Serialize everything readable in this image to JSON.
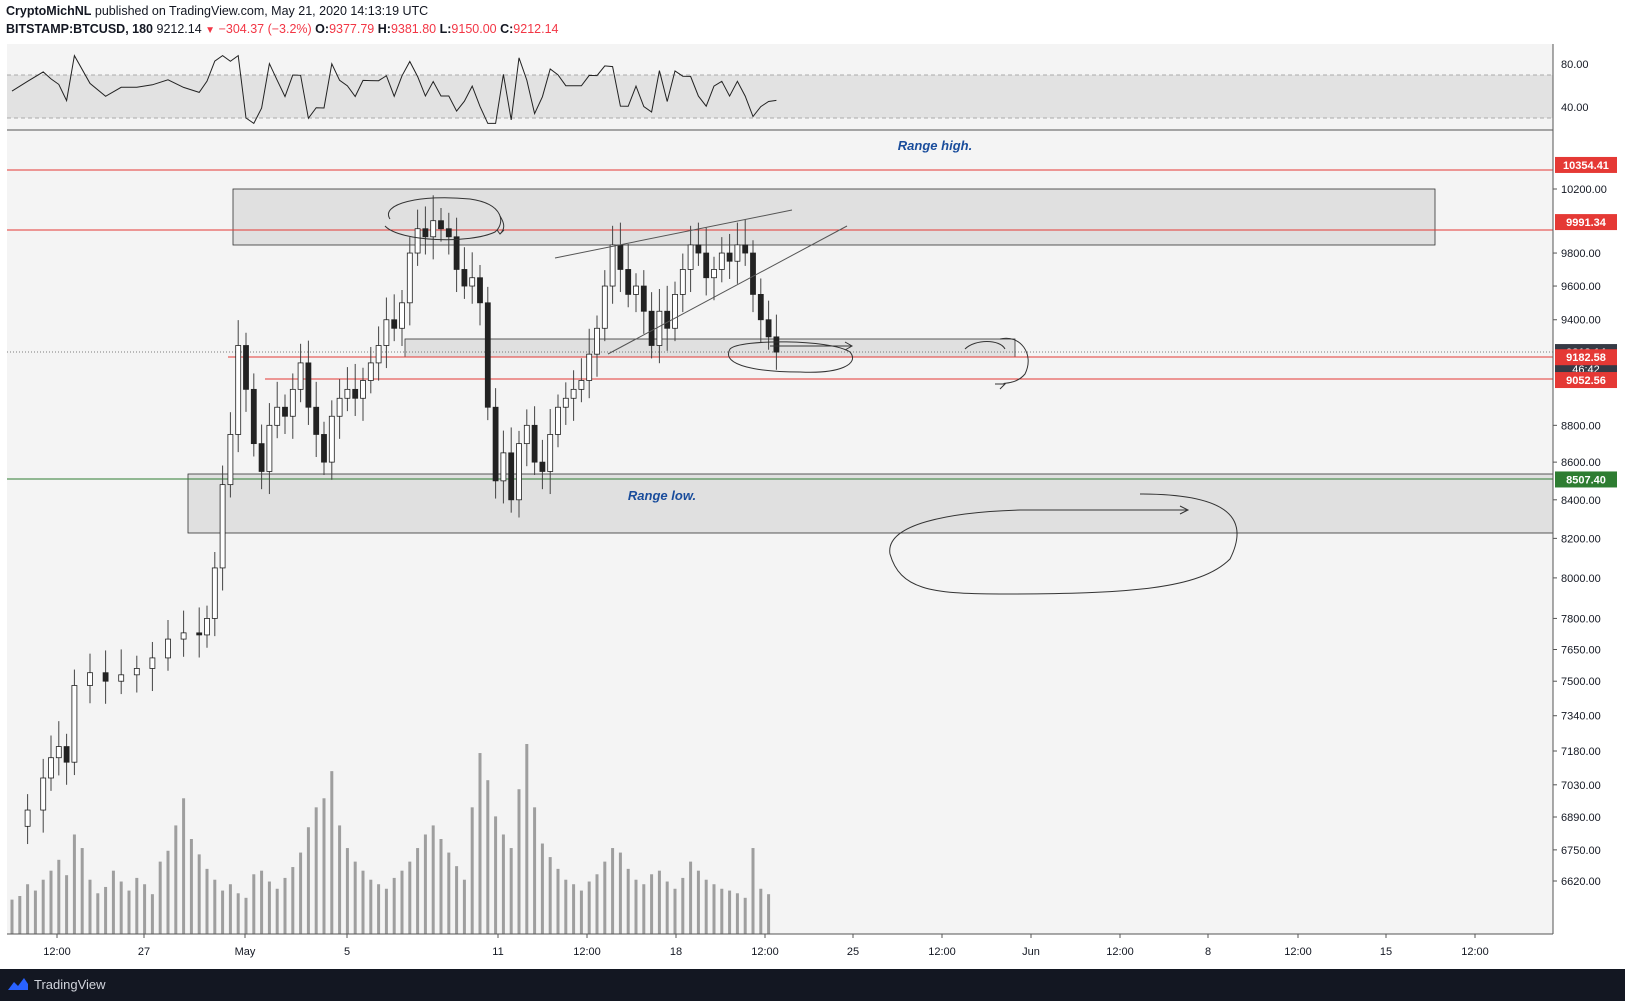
{
  "header": {
    "author": "CryptoMichNL",
    "published_text": "published on TradingView.com, May 21, 2020 14:13:19 UTC",
    "symbol": "BITSTAMP:BTCUSD, 180",
    "last_price": "9212.14",
    "change": "−304.37 (−3.2%)",
    "o_label": "O:",
    "o_value": "9377.79",
    "h_label": "H:",
    "h_value": "9381.80",
    "l_label": "L:",
    "l_value": "9150.00",
    "c_label": "C:",
    "c_value": "9212.14"
  },
  "footer": {
    "brand": "TradingView"
  },
  "chart_data": {
    "type": "candlestick",
    "symbol": "BITSTAMP:BTCUSD",
    "interval": "180",
    "ylim": [
      6450,
      10900
    ],
    "y_scale": "log",
    "y_ticks": [
      10200,
      9800,
      9600,
      9400,
      8800,
      8600,
      8400,
      8200,
      8000,
      7800,
      7650,
      7500,
      7340,
      7180,
      7030,
      6890,
      6750,
      6620
    ],
    "x_ticks": [
      "12:00",
      "27",
      "May",
      "5",
      "11",
      "12:00",
      "18",
      "12:00",
      "25",
      "12:00",
      "Jun",
      "12:00",
      "8",
      "12:00",
      "15",
      "12:00"
    ],
    "rsi": {
      "levels": [
        70,
        30
      ],
      "ticks": [
        "80.00",
        "40.00"
      ]
    },
    "price_levels": [
      {
        "value": 10354.41,
        "label": "10354.41",
        "color": "#e53935"
      },
      {
        "value": 9991.34,
        "label": "9991.34",
        "color": "#e53935"
      },
      {
        "value": 9212.14,
        "label": "9212.14",
        "color": "#363a45",
        "countdown": "46:42"
      },
      {
        "value": 9182.58,
        "label": "9182.58",
        "color": "#e53935"
      },
      {
        "value": 9052.56,
        "label": "9052.56",
        "color": "#e53935"
      },
      {
        "value": 8507.4,
        "label": "8507.40",
        "color": "#2e7d32"
      }
    ],
    "annotations": [
      {
        "text": "Range high."
      },
      {
        "text": "Range low."
      }
    ],
    "zones": [
      {
        "name": "range-high-zone",
        "top": 10260,
        "bottom": 9890
      },
      {
        "name": "mid-support-zone",
        "top": 9282,
        "bottom": 9180
      },
      {
        "name": "range-low-zone",
        "top": 8650,
        "bottom": 8290
      }
    ],
    "price_path": [
      [
        0,
        6850
      ],
      [
        2,
        6920
      ],
      [
        4,
        7060
      ],
      [
        5,
        7150
      ],
      [
        6,
        7200
      ],
      [
        7,
        7130
      ],
      [
        8,
        7480
      ],
      [
        10,
        7540
      ],
      [
        12,
        7500
      ],
      [
        14,
        7530
      ],
      [
        16,
        7560
      ],
      [
        18,
        7610
      ],
      [
        20,
        7700
      ],
      [
        22,
        7730
      ],
      [
        24,
        7720
      ],
      [
        25,
        7800
      ],
      [
        26,
        8050
      ],
      [
        27,
        8480
      ],
      [
        28,
        8750
      ],
      [
        29,
        9250
      ],
      [
        30,
        9000
      ],
      [
        31,
        8700
      ],
      [
        32,
        8550
      ],
      [
        33,
        8800
      ],
      [
        34,
        8900
      ],
      [
        35,
        8850
      ],
      [
        36,
        9000
      ],
      [
        37,
        9150
      ],
      [
        38,
        8900
      ],
      [
        39,
        8750
      ],
      [
        40,
        8600
      ],
      [
        41,
        8850
      ],
      [
        42,
        8950
      ],
      [
        43,
        9000
      ],
      [
        44,
        8950
      ],
      [
        45,
        9050
      ],
      [
        46,
        9150
      ],
      [
        47,
        9250
      ],
      [
        48,
        9400
      ],
      [
        49,
        9350
      ],
      [
        50,
        9500
      ],
      [
        51,
        9800
      ],
      [
        52,
        9950
      ],
      [
        53,
        9900
      ],
      [
        54,
        10000
      ],
      [
        55,
        9950
      ],
      [
        56,
        9900
      ],
      [
        57,
        9700
      ],
      [
        58,
        9600
      ],
      [
        59,
        9650
      ],
      [
        60,
        9500
      ],
      [
        61,
        8900
      ],
      [
        62,
        8500
      ],
      [
        63,
        8650
      ],
      [
        64,
        8400
      ],
      [
        65,
        8700
      ],
      [
        66,
        8800
      ],
      [
        67,
        8600
      ],
      [
        68,
        8550
      ],
      [
        69,
        8750
      ],
      [
        70,
        8900
      ],
      [
        71,
        8950
      ],
      [
        72,
        9000
      ],
      [
        73,
        9050
      ],
      [
        74,
        9200
      ],
      [
        75,
        9350
      ],
      [
        76,
        9600
      ],
      [
        77,
        9850
      ],
      [
        78,
        9700
      ],
      [
        79,
        9550
      ],
      [
        80,
        9600
      ],
      [
        81,
        9450
      ],
      [
        82,
        9250
      ],
      [
        83,
        9450
      ],
      [
        84,
        9350
      ],
      [
        85,
        9550
      ],
      [
        86,
        9700
      ],
      [
        87,
        9850
      ],
      [
        88,
        9800
      ],
      [
        89,
        9650
      ],
      [
        90,
        9700
      ],
      [
        91,
        9800
      ],
      [
        92,
        9750
      ],
      [
        93,
        9850
      ],
      [
        94,
        9800
      ],
      [
        95,
        9550
      ],
      [
        96,
        9400
      ],
      [
        97,
        9300
      ],
      [
        98,
        9212
      ]
    ],
    "volume": [
      38,
      42,
      55,
      48,
      60,
      70,
      82,
      65,
      110,
      95,
      60,
      45,
      52,
      70,
      58,
      48,
      62,
      55,
      44,
      80,
      92,
      120,
      150,
      105,
      88,
      72,
      60,
      48,
      55,
      45,
      40,
      66,
      70,
      58,
      50,
      62,
      74,
      90,
      118,
      140,
      150,
      180,
      120,
      95,
      80,
      70,
      60,
      55,
      50,
      62,
      70,
      80,
      95,
      110,
      120,
      105,
      90,
      75,
      60,
      140,
      200,
      170,
      130,
      110,
      95,
      160,
      210,
      140,
      100,
      85,
      72,
      60,
      55,
      48,
      58,
      66,
      80,
      95,
      90,
      72,
      60,
      55,
      66,
      70,
      58,
      50,
      62,
      80,
      70,
      60,
      55,
      50,
      48,
      45,
      40,
      95,
      50,
      44
    ]
  }
}
